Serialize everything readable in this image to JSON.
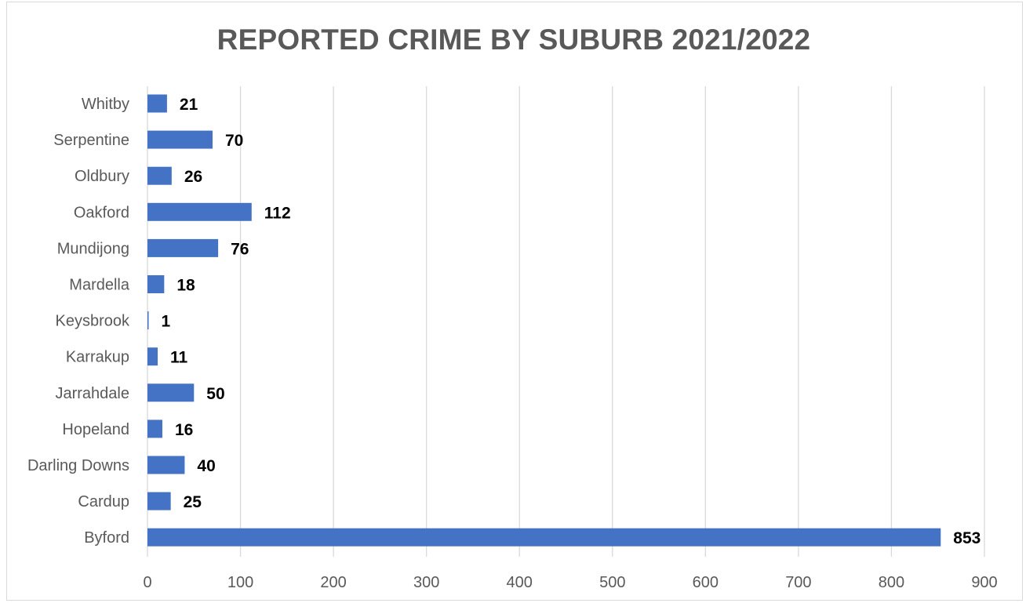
{
  "chart_data": {
    "type": "bar",
    "orientation": "horizontal",
    "title": "REPORTED CRIME BY SUBURB 2021/2022",
    "xlabel": "",
    "ylabel": "",
    "categories": [
      "Whitby",
      "Serpentine",
      "Oldbury",
      "Oakford",
      "Mundijong",
      "Mardella",
      "Keysbrook",
      "Karrakup",
      "Jarrahdale",
      "Hopeland",
      "Darling Downs",
      "Cardup",
      "Byford"
    ],
    "values": [
      21,
      70,
      26,
      112,
      76,
      18,
      1,
      11,
      50,
      16,
      40,
      25,
      853
    ],
    "data_labels": [
      "21",
      "70",
      "26",
      "112",
      "76",
      "18",
      "1",
      "11",
      "50",
      "16",
      "40",
      "25",
      "853"
    ],
    "xlim": [
      0,
      900
    ],
    "x_ticks": [
      0,
      100,
      200,
      300,
      400,
      500,
      600,
      700,
      800,
      900
    ],
    "x_tick_labels": [
      "0",
      "100",
      "200",
      "300",
      "400",
      "500",
      "600",
      "700",
      "800",
      "900"
    ],
    "grid": true,
    "legend": "none",
    "bar_color": "#4472c4",
    "title_color": "#595959",
    "label_color": "#595959",
    "data_label_color": "#000000",
    "grid_color": "#d9d9d9"
  }
}
